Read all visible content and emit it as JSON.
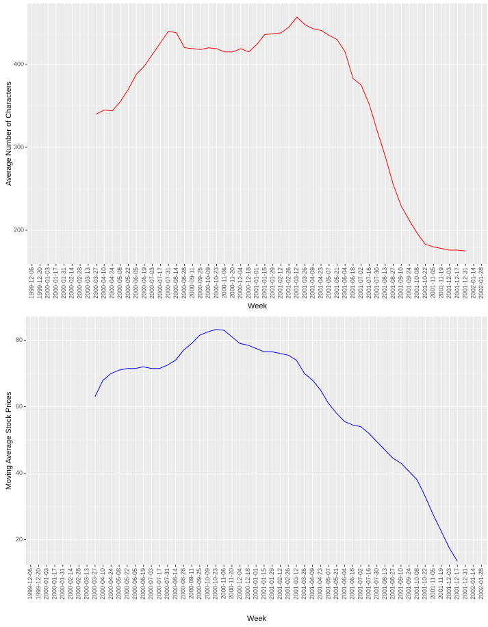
{
  "chart_data": [
    {
      "type": "line",
      "xlabel": "Week",
      "ylabel": "Average Number of Characters",
      "color": "#ff0000",
      "grid": true,
      "x": [
        "2000-03-27",
        "2000-04-10",
        "2000-04-24",
        "2000-05-08",
        "2000-05-22",
        "2000-06-05",
        "2000-06-19",
        "2000-07-03",
        "2000-07-17",
        "2000-07-31",
        "2000-08-14",
        "2000-08-28",
        "2000-09-11",
        "2000-09-25",
        "2000-10-09",
        "2000-10-23",
        "2000-11-06",
        "2000-11-20",
        "2000-12-04",
        "2000-12-18",
        "2001-01-01",
        "2001-01-15",
        "2001-01-29",
        "2001-02-12",
        "2001-02-26",
        "2001-03-12",
        "2001-03-26",
        "2001-04-09",
        "2001-04-23",
        "2001-05-07",
        "2001-05-21",
        "2001-06-04",
        "2001-06-18",
        "2001-07-02",
        "2001-07-16",
        "2001-07-30",
        "2001-08-13",
        "2001-08-27",
        "2001-09-10",
        "2001-09-24",
        "2001-10-08",
        "2001-10-22",
        "2001-11-05",
        "2001-11-19",
        "2001-12-03",
        "2001-12-17",
        "2001-12-31"
      ],
      "values": [
        340,
        345,
        344,
        355,
        370,
        388,
        398,
        412,
        426,
        440,
        438,
        420,
        419,
        418,
        420,
        419,
        415,
        415,
        419,
        415,
        424,
        436,
        437,
        438,
        445,
        457,
        448,
        443,
        441,
        435,
        430,
        415,
        383,
        375,
        352,
        320,
        289,
        255,
        229,
        212,
        196,
        183,
        180,
        178,
        176,
        176,
        175
      ],
      "xlim": [
        "1999-11-28",
        "2002-02-07"
      ],
      "xticks": [
        "1999-12-06",
        "1999-12-20",
        "2000-01-03",
        "2000-01-17",
        "2000-01-31",
        "2000-02-14",
        "2000-02-28",
        "2000-03-13",
        "2000-03-27",
        "2000-04-10",
        "2000-04-24",
        "2000-05-08",
        "2000-05-22",
        "2000-06-05",
        "2000-06-19",
        "2000-07-03",
        "2000-07-17",
        "2000-07-31",
        "2000-08-14",
        "2000-08-28",
        "2000-09-11",
        "2000-09-25",
        "2000-10-09",
        "2000-10-23",
        "2000-11-06",
        "2000-11-20",
        "2000-12-04",
        "2000-12-18",
        "2001-01-01",
        "2001-01-15",
        "2001-01-29",
        "2001-02-12",
        "2001-02-26",
        "2001-03-12",
        "2001-03-26",
        "2001-04-09",
        "2001-04-23",
        "2001-05-07",
        "2001-05-21",
        "2001-06-04",
        "2001-06-18",
        "2001-07-02",
        "2001-07-16",
        "2001-07-30",
        "2001-08-13",
        "2001-08-27",
        "2001-09-10",
        "2001-09-24",
        "2001-10-08",
        "2001-10-22",
        "2001-11-05",
        "2001-11-19",
        "2001-12-03",
        "2001-12-17",
        "2001-12-31",
        "2002-01-14",
        "2002-01-28"
      ],
      "ylim": [
        159.5,
        473.5
      ],
      "yticks": [
        200,
        300,
        400
      ]
    },
    {
      "type": "line",
      "xlabel": "Week",
      "ylabel": "Moving Average Stock Prices",
      "color": "#0000ff",
      "grid": true,
      "x": [
        "2000-03-27",
        "2000-04-10",
        "2000-04-24",
        "2000-05-08",
        "2000-05-22",
        "2000-06-05",
        "2000-06-19",
        "2000-07-03",
        "2000-07-17",
        "2000-07-31",
        "2000-08-14",
        "2000-08-28",
        "2000-09-11",
        "2000-09-25",
        "2000-10-09",
        "2000-10-23",
        "2000-11-06",
        "2000-11-20",
        "2000-12-04",
        "2000-12-18",
        "2001-01-01",
        "2001-01-15",
        "2001-01-29",
        "2001-02-12",
        "2001-02-26",
        "2001-03-12",
        "2001-03-26",
        "2001-04-09",
        "2001-04-23",
        "2001-05-07",
        "2001-05-21",
        "2001-06-04",
        "2001-06-18",
        "2001-07-02",
        "2001-07-16",
        "2001-07-30",
        "2001-08-13",
        "2001-08-27",
        "2001-09-10",
        "2001-09-24",
        "2001-10-08",
        "2001-10-22",
        "2001-11-05",
        "2001-11-19",
        "2001-12-03",
        "2001-12-17"
      ],
      "values": [
        63,
        68,
        70,
        71,
        71.5,
        71.5,
        72,
        71.5,
        71.5,
        72.5,
        74,
        77,
        79,
        81.5,
        82.5,
        83.2,
        83,
        81,
        79,
        78.5,
        77.5,
        76.5,
        76.5,
        76,
        75.5,
        74,
        70,
        68,
        65,
        61,
        58,
        55.5,
        54.5,
        54,
        52,
        49.5,
        47,
        44.5,
        43,
        40.5,
        38,
        33,
        27.5,
        22.5,
        17.5,
        13.5
      ],
      "xlim": [
        "1999-11-28",
        "2002-02-07"
      ],
      "xticks": [
        "1999-12-06",
        "1999-12-20",
        "2000-01-03",
        "2000-01-17",
        "2000-01-31",
        "2000-02-14",
        "2000-02-28",
        "2000-03-13",
        "2000-03-27",
        "2000-04-10",
        "2000-04-24",
        "2000-05-08",
        "2000-05-22",
        "2000-06-05",
        "2000-06-19",
        "2000-07-03",
        "2000-07-17",
        "2000-07-31",
        "2000-08-14",
        "2000-08-28",
        "2000-09-11",
        "2000-09-25",
        "2000-10-09",
        "2000-10-23",
        "2000-11-06",
        "2000-11-20",
        "2000-12-04",
        "2000-12-18",
        "2001-01-01",
        "2001-01-15",
        "2001-01-29",
        "2001-02-12",
        "2001-02-26",
        "2001-03-12",
        "2001-03-26",
        "2001-04-09",
        "2001-04-23",
        "2001-05-07",
        "2001-05-21",
        "2001-06-04",
        "2001-06-18",
        "2001-07-02",
        "2001-07-16",
        "2001-07-30",
        "2001-08-13",
        "2001-08-27",
        "2001-09-10",
        "2001-09-24",
        "2001-10-08",
        "2001-10-22",
        "2001-11-05",
        "2001-11-19",
        "2001-12-03",
        "2001-12-17",
        "2001-12-31",
        "2002-01-14",
        "2002-01-28"
      ],
      "ylim": [
        12.5,
        87.1
      ],
      "yticks": [
        20,
        40,
        60,
        80
      ]
    }
  ]
}
